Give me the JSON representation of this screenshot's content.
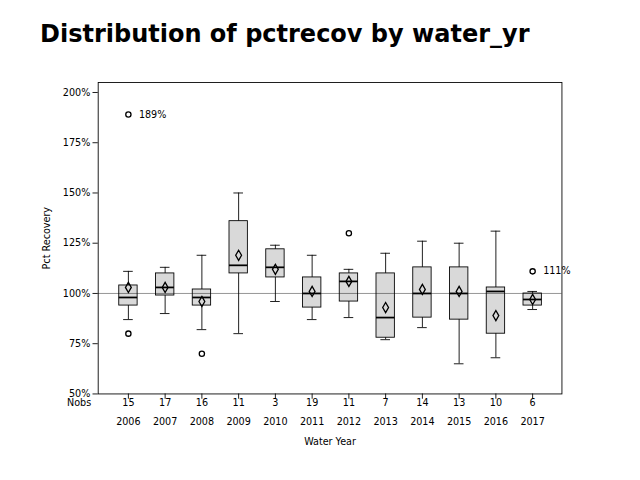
{
  "chart_data": {
    "type": "box",
    "title": "Distribution of pctrecov by water_yr",
    "xlabel": "Water Year",
    "ylabel": "Pct Recovery",
    "categories": [
      "2006",
      "2007",
      "2008",
      "2009",
      "2010",
      "2011",
      "2012",
      "2013",
      "2014",
      "2015",
      "2016",
      "2017"
    ],
    "boxes": [
      {
        "q1": 94,
        "median": 98,
        "q3": 104,
        "whislo": 87,
        "whishi": 111,
        "mean": 103,
        "fliers": [
          80
        ]
      },
      {
        "q1": 99,
        "median": 103,
        "q3": 110,
        "whislo": 90,
        "whishi": 113,
        "mean": 103,
        "fliers": []
      },
      {
        "q1": 94,
        "median": 98,
        "q3": 102,
        "whislo": 82,
        "whishi": 119,
        "mean": 96,
        "fliers": [
          70
        ]
      },
      {
        "q1": 110,
        "median": 114,
        "q3": 136,
        "whislo": 80,
        "whishi": 150,
        "mean": 119,
        "fliers": []
      },
      {
        "q1": 108,
        "median": 113,
        "q3": 122,
        "whislo": 96,
        "whishi": 124,
        "mean": 112,
        "fliers": []
      },
      {
        "q1": 93,
        "median": 100,
        "q3": 108,
        "whislo": 87,
        "whishi": 119,
        "mean": 101,
        "fliers": []
      },
      {
        "q1": 96,
        "median": 106,
        "q3": 110,
        "whislo": 88,
        "whishi": 112,
        "mean": 106,
        "fliers": [
          130
        ]
      },
      {
        "q1": 78,
        "median": 88,
        "q3": 110,
        "whislo": 77,
        "whishi": 120,
        "mean": 93,
        "fliers": []
      },
      {
        "q1": 88,
        "median": 100,
        "q3": 113,
        "whislo": 83,
        "whishi": 126,
        "mean": 102,
        "fliers": []
      },
      {
        "q1": 87,
        "median": 100,
        "q3": 113,
        "whislo": 65,
        "whishi": 125,
        "mean": 101,
        "fliers": []
      },
      {
        "q1": 80,
        "median": 101,
        "q3": 103,
        "whislo": 68,
        "whishi": 131,
        "mean": 89,
        "fliers": []
      },
      {
        "q1": 94,
        "median": 97,
        "q3": 100,
        "whislo": 92,
        "whishi": 101,
        "mean": 97,
        "fliers": []
      }
    ],
    "annotations": [
      {
        "category": "2006",
        "value": 189,
        "label": "189%"
      },
      {
        "category": "2017",
        "value": 111,
        "label": "111%"
      }
    ],
    "nobs": {
      "label": "Nobs",
      "values": [
        15,
        17,
        16,
        11,
        3,
        19,
        11,
        7,
        14,
        13,
        10,
        6
      ]
    },
    "reference_line": 100,
    "ylim": [
      50,
      205
    ],
    "yticks": [
      {
        "value": 50,
        "label": "50%"
      },
      {
        "value": 75,
        "label": "75%"
      },
      {
        "value": 100,
        "label": "100%"
      },
      {
        "value": 125,
        "label": "125%"
      },
      {
        "value": 150,
        "label": "150%"
      },
      {
        "value": 175,
        "label": "175%"
      },
      {
        "value": 200,
        "label": "200%"
      }
    ],
    "grid": false
  }
}
